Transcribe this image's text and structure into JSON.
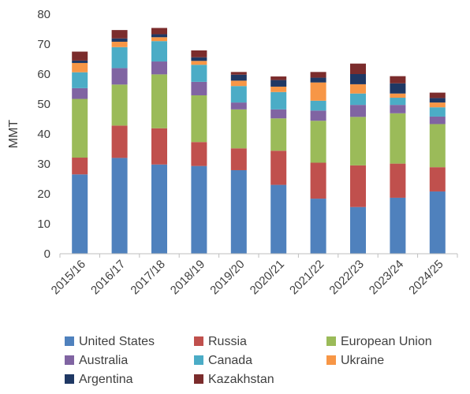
{
  "chart_data": {
    "type": "bar",
    "stacked": true,
    "title": "",
    "xlabel": "",
    "ylabel": "MMT",
    "ylim": [
      0,
      80
    ],
    "yticks": [
      0,
      10,
      20,
      30,
      40,
      50,
      60,
      70,
      80
    ],
    "grid": false,
    "legend_position": "bottom",
    "categories": [
      "2015/16",
      "2016/17",
      "2017/18",
      "2018/19",
      "2019/20",
      "2020/21",
      "2021/22",
      "2022/23",
      "2023/24",
      "2024/25"
    ],
    "series": [
      {
        "name": "United States",
        "color": "#4f81bd",
        "values": [
          26.5,
          32.0,
          29.8,
          29.3,
          27.9,
          23.0,
          18.4,
          15.6,
          18.7,
          20.8
        ]
      },
      {
        "name": "Russia",
        "color": "#c0504d",
        "values": [
          5.6,
          10.8,
          12.1,
          8.0,
          7.3,
          11.4,
          12.0,
          13.9,
          11.4,
          8.1
        ]
      },
      {
        "name": "European Union",
        "color": "#9bbb59",
        "values": [
          19.6,
          13.7,
          18.0,
          15.6,
          13.0,
          10.8,
          14.0,
          16.2,
          16.8,
          14.4
        ]
      },
      {
        "name": "Australia",
        "color": "#8064a2",
        "values": [
          3.6,
          5.5,
          4.3,
          4.5,
          2.3,
          3.0,
          3.4,
          4.0,
          2.8,
          2.5
        ]
      },
      {
        "name": "Canada",
        "color": "#4bacc6",
        "values": [
          5.3,
          7.0,
          6.8,
          5.7,
          5.5,
          5.8,
          3.3,
          3.8,
          2.4,
          3.1
        ]
      },
      {
        "name": "Ukraine",
        "color": "#f79646",
        "values": [
          3.1,
          1.8,
          1.3,
          1.3,
          1.8,
          1.8,
          6.1,
          3.1,
          1.4,
          1.6
        ]
      },
      {
        "name": "Argentina",
        "color": "#1f3864",
        "values": [
          0.8,
          1.1,
          1.0,
          1.2,
          2.0,
          2.2,
          1.6,
          3.4,
          3.4,
          1.5
        ]
      },
      {
        "name": "Kazakhstan",
        "color": "#7b2c2c",
        "values": [
          3.0,
          2.8,
          2.1,
          2.3,
          0.9,
          1.2,
          1.9,
          3.5,
          2.4,
          1.8
        ]
      }
    ]
  }
}
